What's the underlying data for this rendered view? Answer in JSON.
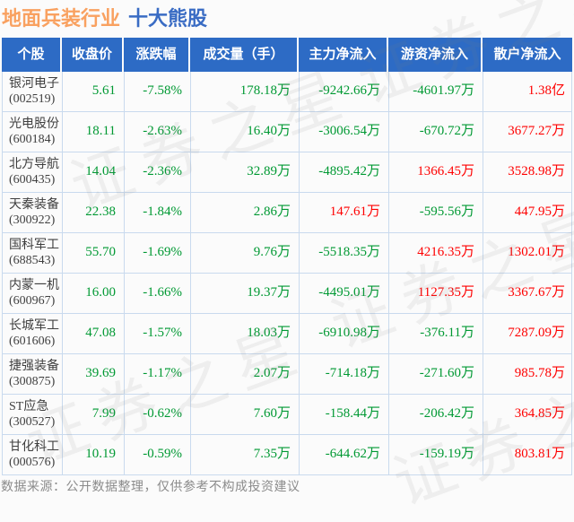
{
  "title": {
    "industry": "地面兵装行业",
    "suffix": "十大熊股"
  },
  "colors": {
    "header_bg": "#2d6bc5",
    "down_green": "#009933",
    "up_red": "#fe0000",
    "title_orange": "#f9a160",
    "title_blue": "#3a6cc4",
    "grid_border": "#c9daee"
  },
  "watermark": {
    "text": "证券之星"
  },
  "footer": {
    "note": "数据来源：公开数据整理，仅供参考不构成投资建议"
  },
  "chart_data": {
    "type": "table",
    "title": "地面兵装行业 十大熊股",
    "columns": [
      "个股",
      "收盘价",
      "涨跌幅",
      "成交量（手）",
      "主力净流入",
      "游资净流入",
      "散户净流入"
    ],
    "color_legend": {
      "g": "下跌/净流出(绿)",
      "r": "上涨/净流入(红)"
    },
    "rows": [
      {
        "name": "银河电子",
        "code": "(002519)",
        "cells": [
          {
            "v": "5.61",
            "c": "g"
          },
          {
            "v": "-7.58%",
            "c": "g"
          },
          {
            "v": "178.18万",
            "c": "g"
          },
          {
            "v": "-9242.66万",
            "c": "g"
          },
          {
            "v": "-4601.97万",
            "c": "g"
          },
          {
            "v": "1.38亿",
            "c": "r"
          }
        ]
      },
      {
        "name": "光电股份",
        "code": "(600184)",
        "cells": [
          {
            "v": "18.11",
            "c": "g"
          },
          {
            "v": "-2.63%",
            "c": "g"
          },
          {
            "v": "16.40万",
            "c": "g"
          },
          {
            "v": "-3006.54万",
            "c": "g"
          },
          {
            "v": "-670.72万",
            "c": "g"
          },
          {
            "v": "3677.27万",
            "c": "r"
          }
        ]
      },
      {
        "name": "北方导航",
        "code": "(600435)",
        "cells": [
          {
            "v": "14.04",
            "c": "g"
          },
          {
            "v": "-2.36%",
            "c": "g"
          },
          {
            "v": "32.89万",
            "c": "g"
          },
          {
            "v": "-4895.42万",
            "c": "g"
          },
          {
            "v": "1366.45万",
            "c": "r"
          },
          {
            "v": "3528.98万",
            "c": "r"
          }
        ]
      },
      {
        "name": "天秦装备",
        "code": "(300922)",
        "cells": [
          {
            "v": "22.38",
            "c": "g"
          },
          {
            "v": "-1.84%",
            "c": "g"
          },
          {
            "v": "2.86万",
            "c": "g"
          },
          {
            "v": "147.61万",
            "c": "r"
          },
          {
            "v": "-595.56万",
            "c": "g"
          },
          {
            "v": "447.95万",
            "c": "r"
          }
        ]
      },
      {
        "name": "国科军工",
        "code": "(688543)",
        "cells": [
          {
            "v": "55.70",
            "c": "g"
          },
          {
            "v": "-1.69%",
            "c": "g"
          },
          {
            "v": "9.76万",
            "c": "g"
          },
          {
            "v": "-5518.35万",
            "c": "g"
          },
          {
            "v": "4216.35万",
            "c": "r"
          },
          {
            "v": "1302.01万",
            "c": "r"
          }
        ]
      },
      {
        "name": "内蒙一机",
        "code": "(600967)",
        "cells": [
          {
            "v": "16.00",
            "c": "g"
          },
          {
            "v": "-1.66%",
            "c": "g"
          },
          {
            "v": "19.37万",
            "c": "g"
          },
          {
            "v": "-4495.01万",
            "c": "g"
          },
          {
            "v": "1127.35万",
            "c": "r"
          },
          {
            "v": "3367.67万",
            "c": "r"
          }
        ]
      },
      {
        "name": "长城军工",
        "code": "(601606)",
        "cells": [
          {
            "v": "47.08",
            "c": "g"
          },
          {
            "v": "-1.57%",
            "c": "g"
          },
          {
            "v": "18.03万",
            "c": "g"
          },
          {
            "v": "-6910.98万",
            "c": "g"
          },
          {
            "v": "-376.11万",
            "c": "g"
          },
          {
            "v": "7287.09万",
            "c": "r"
          }
        ]
      },
      {
        "name": "捷强装备",
        "code": "(300875)",
        "cells": [
          {
            "v": "39.69",
            "c": "g"
          },
          {
            "v": "-1.17%",
            "c": "g"
          },
          {
            "v": "2.07万",
            "c": "g"
          },
          {
            "v": "-714.18万",
            "c": "g"
          },
          {
            "v": "-271.60万",
            "c": "g"
          },
          {
            "v": "985.78万",
            "c": "r"
          }
        ]
      },
      {
        "name": "ST应急",
        "code": "(300527)",
        "cells": [
          {
            "v": "7.99",
            "c": "g"
          },
          {
            "v": "-0.62%",
            "c": "g"
          },
          {
            "v": "7.60万",
            "c": "g"
          },
          {
            "v": "-158.44万",
            "c": "g"
          },
          {
            "v": "-206.42万",
            "c": "g"
          },
          {
            "v": "364.85万",
            "c": "r"
          }
        ]
      },
      {
        "name": "甘化科工",
        "code": "(000576)",
        "cells": [
          {
            "v": "10.19",
            "c": "g"
          },
          {
            "v": "-0.59%",
            "c": "g"
          },
          {
            "v": "7.35万",
            "c": "g"
          },
          {
            "v": "-644.62万",
            "c": "g"
          },
          {
            "v": "-159.19万",
            "c": "g"
          },
          {
            "v": "803.81万",
            "c": "r"
          }
        ]
      }
    ]
  }
}
